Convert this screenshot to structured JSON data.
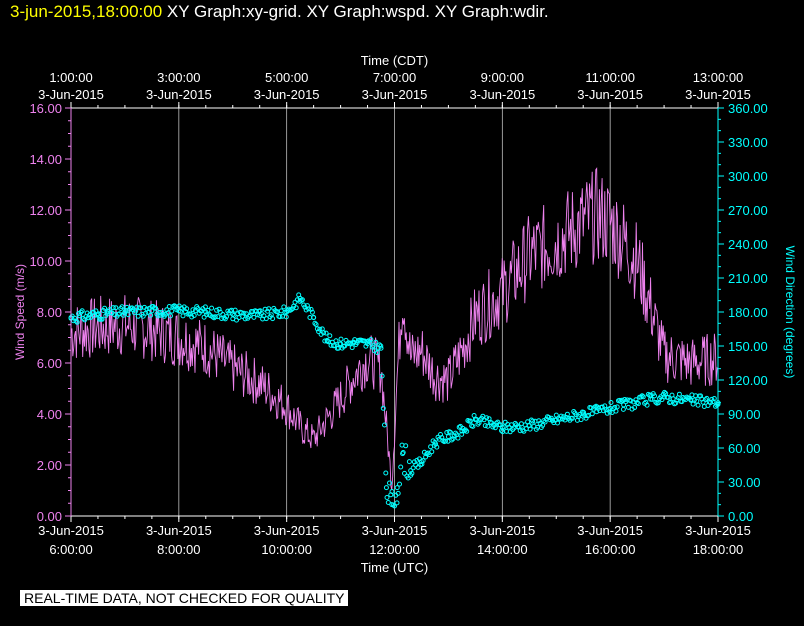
{
  "header": {
    "timestamp": "3-jun-2015,18:00:00",
    "graphs": "XY Graph:xy-grid.  XY Graph:wspd.  XY Graph:wdir."
  },
  "colors": {
    "background": "#000000",
    "axis": "#ffffff",
    "grid": "#ffffff",
    "wind_speed": "#ee82ee",
    "wind_direction": "#00ffff",
    "timestamp": "#ffff00"
  },
  "disclaimer": "REAL-TIME DATA, NOT CHECKED FOR QUALITY",
  "chart_data": {
    "type": "line",
    "grid": true,
    "x_top": {
      "label": "Time (CDT)",
      "ticks": [
        {
          "time": "1:00:00",
          "date": "3-Jun-2015"
        },
        {
          "time": "3:00:00",
          "date": "3-Jun-2015"
        },
        {
          "time": "5:00:00",
          "date": "3-Jun-2015"
        },
        {
          "time": "7:00:00",
          "date": "3-Jun-2015"
        },
        {
          "time": "9:00:00",
          "date": "3-Jun-2015"
        },
        {
          "time": "11:00:00",
          "date": "3-Jun-2015"
        },
        {
          "time": "13:00:00",
          "date": "3-Jun-2015"
        }
      ]
    },
    "x_bottom": {
      "label": "Time (UTC)",
      "range": [
        6,
        18
      ],
      "ticks": [
        {
          "time": "6:00:00",
          "date": "3-Jun-2015"
        },
        {
          "time": "8:00:00",
          "date": "3-Jun-2015"
        },
        {
          "time": "10:00:00",
          "date": "3-Jun-2015"
        },
        {
          "time": "12:00:00",
          "date": "3-Jun-2015"
        },
        {
          "time": "14:00:00",
          "date": "3-Jun-2015"
        },
        {
          "time": "16:00:00",
          "date": "3-Jun-2015"
        },
        {
          "time": "18:00:00",
          "date": "3-Jun-2015"
        }
      ]
    },
    "y_left": {
      "label": "Wind Speed (m/s)",
      "range": [
        0,
        16
      ],
      "ticks": [
        "0.00",
        "2.00",
        "4.00",
        "6.00",
        "8.00",
        "10.00",
        "12.00",
        "14.00",
        "16.00"
      ]
    },
    "y_right": {
      "label": "Wind Direction (degrees)",
      "range": [
        0,
        360
      ],
      "ticks": [
        "0.00",
        "30.00",
        "60.00",
        "90.00",
        "120.00",
        "150.00",
        "180.00",
        "210.00",
        "240.00",
        "270.00",
        "300.00",
        "330.00",
        "360.00"
      ]
    },
    "series": [
      {
        "name": "Wind Speed",
        "type": "line",
        "axis": "left",
        "x_hours_utc": [
          6.0,
          6.5,
          7.0,
          7.5,
          8.0,
          8.5,
          9.0,
          9.5,
          10.0,
          10.25,
          10.5,
          10.75,
          11.0,
          11.25,
          11.5,
          11.75,
          11.85,
          11.95,
          12.05,
          12.15,
          12.3,
          12.5,
          12.75,
          13.0,
          13.25,
          13.5,
          14.0,
          14.5,
          15.0,
          15.5,
          15.75,
          16.0,
          16.25,
          16.5,
          16.75,
          17.0,
          17.5,
          18.0
        ],
        "y": [
          7.2,
          7.4,
          7.5,
          7.3,
          7.0,
          6.6,
          5.8,
          5.2,
          4.3,
          3.5,
          3.0,
          3.8,
          4.6,
          5.5,
          6.2,
          5.8,
          3.5,
          1.2,
          5.5,
          8.8,
          6.2,
          6.5,
          5.5,
          5.3,
          6.5,
          7.8,
          8.8,
          10.2,
          10.8,
          11.5,
          11.8,
          11.5,
          10.8,
          10.0,
          8.2,
          6.3,
          6.0,
          6.2
        ]
      },
      {
        "name": "Wind Direction",
        "type": "scatter",
        "axis": "right",
        "x_hours_utc": [
          6.0,
          6.5,
          7.0,
          7.5,
          8.0,
          8.5,
          9.0,
          9.5,
          10.0,
          10.25,
          10.5,
          10.75,
          11.0,
          11.25,
          11.5,
          11.75,
          11.85,
          11.95,
          12.05,
          12.15,
          12.3,
          12.5,
          12.75,
          13.0,
          13.25,
          13.5,
          14.0,
          14.5,
          15.0,
          15.5,
          15.75,
          16.0,
          16.25,
          16.5,
          16.75,
          17.0,
          17.5,
          18.0
        ],
        "y": [
          175,
          178,
          180,
          181,
          181,
          180,
          178,
          177,
          180,
          192,
          175,
          155,
          152,
          153,
          152,
          148,
          25,
          10,
          25,
          55,
          40,
          48,
          65,
          70,
          75,
          85,
          78,
          80,
          85,
          90,
          92,
          95,
          98,
          100,
          103,
          105,
          102,
          100
        ]
      }
    ]
  }
}
